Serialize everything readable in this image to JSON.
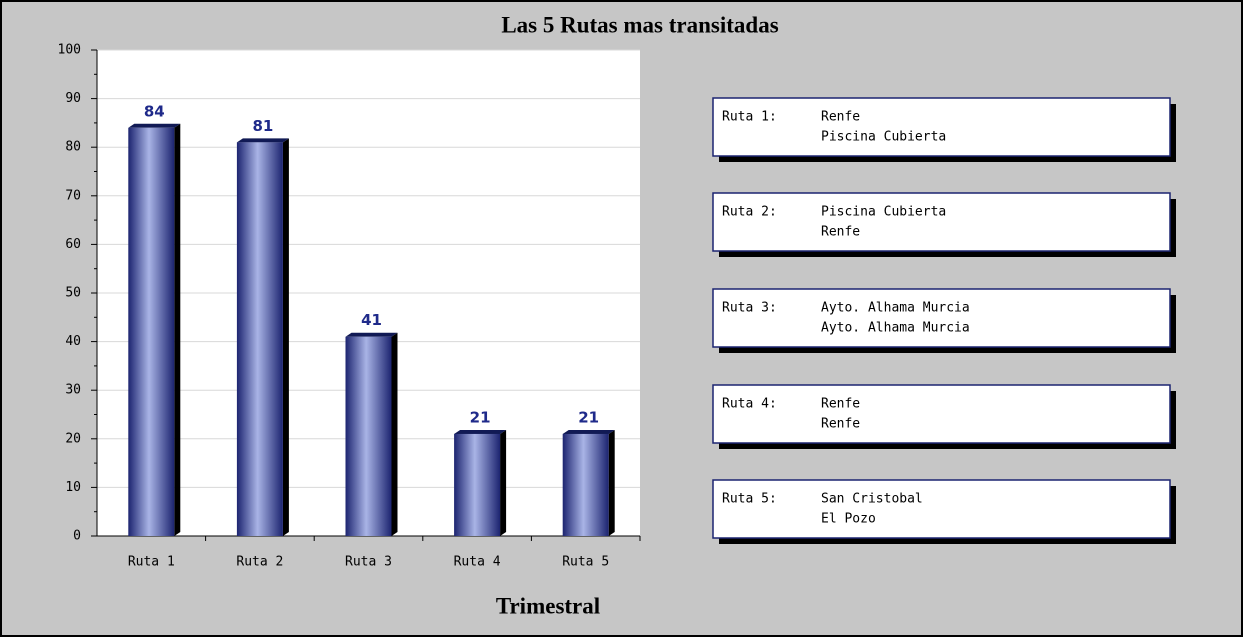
{
  "chart_data": {
    "type": "bar",
    "title": "Las 5 Rutas mas transitadas",
    "x_label": "Trimestral",
    "categories": [
      "Ruta 1",
      "Ruta 2",
      "Ruta 3",
      "Ruta 4",
      "Ruta 5"
    ],
    "values": [
      84,
      81,
      41,
      21,
      21
    ],
    "color": "#3a4aa0",
    "ylim": [
      0,
      100
    ],
    "yticks": [
      0,
      10,
      20,
      30,
      40,
      50,
      60,
      70,
      80,
      90,
      100
    ],
    "grid": true,
    "legend_boxes": [
      {
        "label": "Ruta 1:",
        "lines": [
          "Renfe",
          "Piscina Cubierta"
        ]
      },
      {
        "label": "Ruta 2:",
        "lines": [
          "Piscina Cubierta",
          "Renfe"
        ]
      },
      {
        "label": "Ruta 3:",
        "lines": [
          "Ayto. Alhama Murcia",
          "Ayto. Alhama Murcia"
        ]
      },
      {
        "label": "Ruta 4:",
        "lines": [
          "Renfe",
          "Renfe"
        ]
      },
      {
        "label": "Ruta 5:",
        "lines": [
          "San Cristobal",
          "El Pozo"
        ]
      }
    ]
  }
}
